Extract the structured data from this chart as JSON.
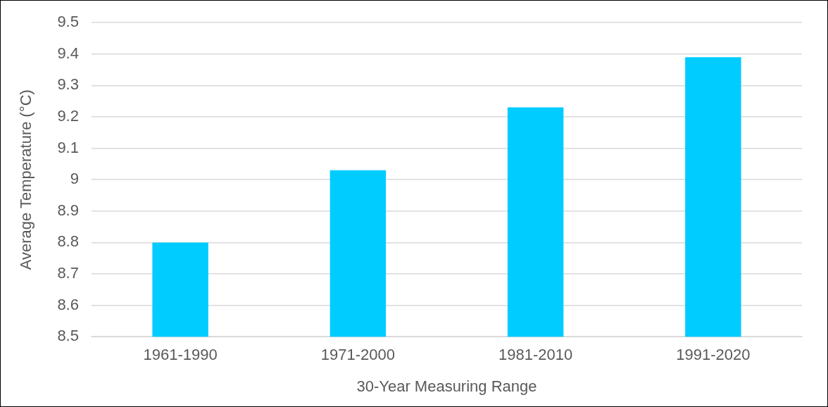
{
  "chart_data": {
    "type": "bar",
    "xlabel": "30-Year Measuring Range",
    "ylabel": "Average Temperature (°C)",
    "categories": [
      "1961-1990",
      "1971-2000",
      "1981-2010",
      "1991-2020"
    ],
    "values": [
      8.8,
      9.03,
      9.23,
      9.39
    ],
    "color": "#00ccff",
    "ylim": [
      8.5,
      9.5
    ],
    "yticks": [
      8.5,
      8.6,
      8.7,
      8.8,
      8.9,
      9,
      9.1,
      9.2,
      9.3,
      9.4,
      9.5
    ],
    "grid": "y"
  }
}
